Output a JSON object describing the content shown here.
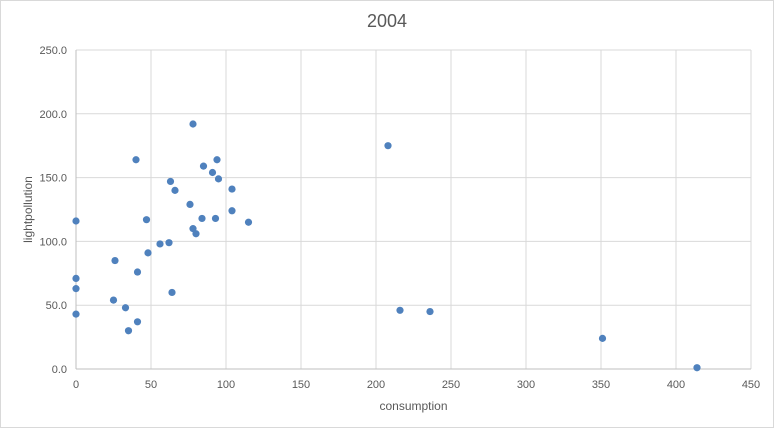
{
  "chart_data": {
    "type": "scatter",
    "title": "2004",
    "xlabel": "consumption",
    "ylabel": "lightpollution",
    "xlim": [
      0,
      450
    ],
    "ylim": [
      0,
      250
    ],
    "x_ticks": [
      "0",
      "50",
      "100",
      "150",
      "200",
      "250",
      "300",
      "350",
      "400",
      "450"
    ],
    "y_ticks": [
      "0.0",
      "50.0",
      "100.0",
      "150.0",
      "200.0",
      "250.0"
    ],
    "grid": true,
    "legend": "none",
    "marker_color": "#4f81bd",
    "points": [
      [
        0,
        116
      ],
      [
        0,
        71
      ],
      [
        0,
        63
      ],
      [
        0,
        43
      ],
      [
        26,
        85
      ],
      [
        25,
        54
      ],
      [
        33,
        48
      ],
      [
        35,
        30
      ],
      [
        40,
        164
      ],
      [
        41,
        76
      ],
      [
        41,
        37
      ],
      [
        47,
        117
      ],
      [
        48,
        91
      ],
      [
        56,
        98
      ],
      [
        62,
        99
      ],
      [
        63,
        147
      ],
      [
        64,
        60
      ],
      [
        66,
        140
      ],
      [
        76,
        129
      ],
      [
        78,
        192
      ],
      [
        78,
        110
      ],
      [
        80,
        106
      ],
      [
        84,
        118
      ],
      [
        85,
        159
      ],
      [
        91,
        154
      ],
      [
        93,
        118
      ],
      [
        94,
        164
      ],
      [
        95,
        149
      ],
      [
        104,
        141
      ],
      [
        104,
        124
      ],
      [
        115,
        115
      ],
      [
        208,
        175
      ],
      [
        216,
        46
      ],
      [
        236,
        45
      ],
      [
        351,
        24
      ],
      [
        414,
        1
      ]
    ]
  }
}
